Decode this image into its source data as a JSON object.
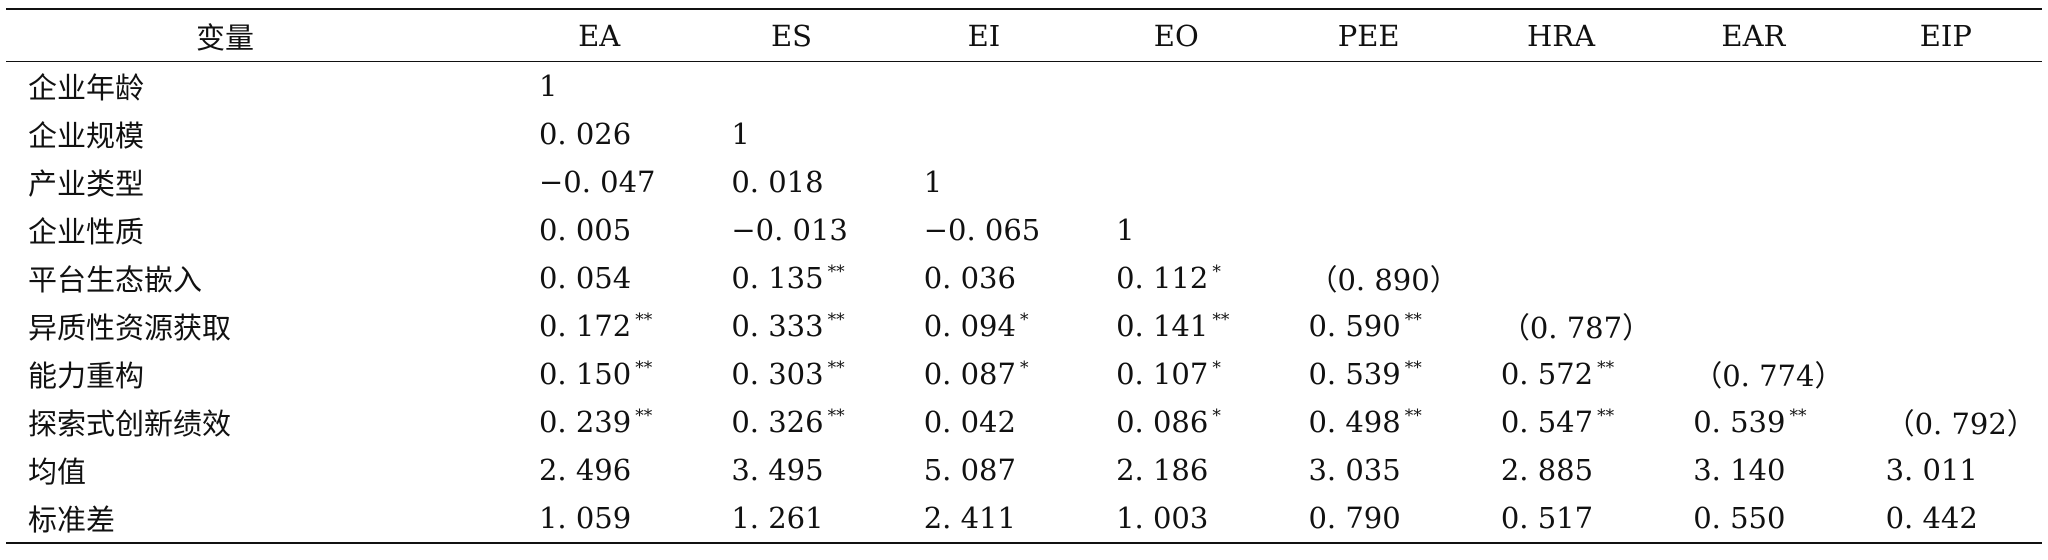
{
  "table": {
    "header": {
      "variable": "变量",
      "columns": [
        "EA",
        "ES",
        "EI",
        "EO",
        "PEE",
        "HRA",
        "EAR",
        "EIP"
      ]
    },
    "rows": [
      {
        "label": "企业年龄",
        "cells": [
          {
            "v": "1",
            "s": ""
          },
          {
            "v": "",
            "s": ""
          },
          {
            "v": "",
            "s": ""
          },
          {
            "v": "",
            "s": ""
          },
          {
            "v": "",
            "s": ""
          },
          {
            "v": "",
            "s": ""
          },
          {
            "v": "",
            "s": ""
          },
          {
            "v": "",
            "s": ""
          }
        ]
      },
      {
        "label": "企业规模",
        "cells": [
          {
            "v": "0. 026",
            "s": ""
          },
          {
            "v": "1",
            "s": ""
          },
          {
            "v": "",
            "s": ""
          },
          {
            "v": "",
            "s": ""
          },
          {
            "v": "",
            "s": ""
          },
          {
            "v": "",
            "s": ""
          },
          {
            "v": "",
            "s": ""
          },
          {
            "v": "",
            "s": ""
          }
        ]
      },
      {
        "label": "产业类型",
        "cells": [
          {
            "v": "−0. 047",
            "s": ""
          },
          {
            "v": "0. 018",
            "s": ""
          },
          {
            "v": "1",
            "s": ""
          },
          {
            "v": "",
            "s": ""
          },
          {
            "v": "",
            "s": ""
          },
          {
            "v": "",
            "s": ""
          },
          {
            "v": "",
            "s": ""
          },
          {
            "v": "",
            "s": ""
          }
        ]
      },
      {
        "label": "企业性质",
        "cells": [
          {
            "v": "0. 005",
            "s": ""
          },
          {
            "v": "−0. 013",
            "s": ""
          },
          {
            "v": "−0. 065",
            "s": ""
          },
          {
            "v": "1",
            "s": ""
          },
          {
            "v": "",
            "s": ""
          },
          {
            "v": "",
            "s": ""
          },
          {
            "v": "",
            "s": ""
          },
          {
            "v": "",
            "s": ""
          }
        ]
      },
      {
        "label": "平台生态嵌入",
        "cells": [
          {
            "v": "0. 054",
            "s": ""
          },
          {
            "v": "0. 135",
            "s": "**"
          },
          {
            "v": "0. 036",
            "s": ""
          },
          {
            "v": "0. 112",
            "s": "*"
          },
          {
            "v": "（0. 890）",
            "s": ""
          },
          {
            "v": "",
            "s": ""
          },
          {
            "v": "",
            "s": ""
          },
          {
            "v": "",
            "s": ""
          }
        ]
      },
      {
        "label": "异质性资源获取",
        "cells": [
          {
            "v": "0. 172",
            "s": "**"
          },
          {
            "v": "0. 333",
            "s": "**"
          },
          {
            "v": "0. 094",
            "s": "*"
          },
          {
            "v": "0. 141",
            "s": "**"
          },
          {
            "v": "0. 590",
            "s": "**"
          },
          {
            "v": "（0. 787）",
            "s": ""
          },
          {
            "v": "",
            "s": ""
          },
          {
            "v": "",
            "s": ""
          }
        ]
      },
      {
        "label": "能力重构",
        "cells": [
          {
            "v": "0. 150",
            "s": "**"
          },
          {
            "v": "0. 303",
            "s": "**"
          },
          {
            "v": "0. 087",
            "s": "*"
          },
          {
            "v": "0. 107",
            "s": "*"
          },
          {
            "v": "0. 539",
            "s": "**"
          },
          {
            "v": "0. 572",
            "s": "**"
          },
          {
            "v": "（0. 774）",
            "s": ""
          },
          {
            "v": "",
            "s": ""
          }
        ]
      },
      {
        "label": "探索式创新绩效",
        "cells": [
          {
            "v": "0. 239",
            "s": "**"
          },
          {
            "v": "0. 326",
            "s": "**"
          },
          {
            "v": "0. 042",
            "s": ""
          },
          {
            "v": "0. 086",
            "s": "*"
          },
          {
            "v": "0. 498",
            "s": "**"
          },
          {
            "v": "0. 547",
            "s": "**"
          },
          {
            "v": "0. 539",
            "s": "**"
          },
          {
            "v": "（0. 792）",
            "s": ""
          }
        ]
      },
      {
        "label": "均值",
        "cells": [
          {
            "v": "2. 496",
            "s": ""
          },
          {
            "v": "3. 495",
            "s": ""
          },
          {
            "v": "5. 087",
            "s": ""
          },
          {
            "v": "2. 186",
            "s": ""
          },
          {
            "v": "3. 035",
            "s": ""
          },
          {
            "v": "2. 885",
            "s": ""
          },
          {
            "v": "3. 140",
            "s": ""
          },
          {
            "v": "3. 011",
            "s": ""
          }
        ]
      },
      {
        "label": "标准差",
        "cells": [
          {
            "v": "1. 059",
            "s": ""
          },
          {
            "v": "1. 261",
            "s": ""
          },
          {
            "v": "2. 411",
            "s": ""
          },
          {
            "v": "1. 003",
            "s": ""
          },
          {
            "v": "0. 790",
            "s": ""
          },
          {
            "v": "0. 517",
            "s": ""
          },
          {
            "v": "0. 550",
            "s": ""
          },
          {
            "v": "0. 442",
            "s": ""
          }
        ]
      }
    ]
  }
}
